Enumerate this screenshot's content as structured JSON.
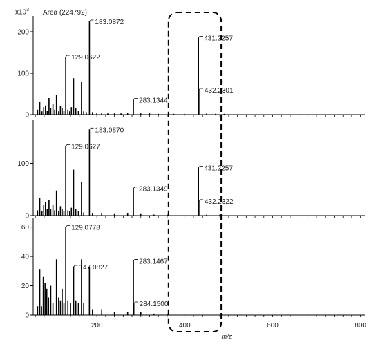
{
  "header": {
    "scale_base": "x10",
    "scale_exp": "3",
    "area_label": "Area (224792)"
  },
  "chart_data": {
    "type": "bar",
    "xlabel": "m/z",
    "xlim": [
      55,
      810
    ],
    "x_ticks": [
      200,
      400,
      600,
      800
    ],
    "highlight_region": {
      "x": [
        363,
        483
      ],
      "style": "dashed-rounded-box"
    },
    "panels": [
      {
        "ylim": [
          0,
          235
        ],
        "y_ticks": [
          0,
          100,
          200
        ],
        "peaks": [
          {
            "x": 65,
            "y": 12
          },
          {
            "x": 70,
            "y": 30
          },
          {
            "x": 75,
            "y": 8
          },
          {
            "x": 79,
            "y": 18
          },
          {
            "x": 83,
            "y": 22
          },
          {
            "x": 87,
            "y": 10
          },
          {
            "x": 91,
            "y": 40
          },
          {
            "x": 95,
            "y": 15
          },
          {
            "x": 100,
            "y": 25
          },
          {
            "x": 104,
            "y": 12
          },
          {
            "x": 108,
            "y": 48
          },
          {
            "x": 113,
            "y": 8
          },
          {
            "x": 117,
            "y": 20
          },
          {
            "x": 121,
            "y": 15
          },
          {
            "x": 125,
            "y": 10
          },
          {
            "x": 129.0622,
            "y": 140,
            "label": "129.0622"
          },
          {
            "x": 134,
            "y": 12
          },
          {
            "x": 138,
            "y": 8
          },
          {
            "x": 142,
            "y": 18
          },
          {
            "x": 147,
            "y": 88
          },
          {
            "x": 152,
            "y": 15
          },
          {
            "x": 158,
            "y": 10
          },
          {
            "x": 165,
            "y": 80
          },
          {
            "x": 170,
            "y": 8
          },
          {
            "x": 176,
            "y": 6
          },
          {
            "x": 183.0872,
            "y": 225,
            "label": "183.0872"
          },
          {
            "x": 190,
            "y": 6
          },
          {
            "x": 200,
            "y": 4
          },
          {
            "x": 211,
            "y": 5
          },
          {
            "x": 225,
            "y": 3
          },
          {
            "x": 240,
            "y": 3
          },
          {
            "x": 255,
            "y": 3
          },
          {
            "x": 270,
            "y": 4
          },
          {
            "x": 283.1344,
            "y": 36,
            "label": "283.1344"
          },
          {
            "x": 300,
            "y": 3
          },
          {
            "x": 320,
            "y": 3
          },
          {
            "x": 340,
            "y": 2
          },
          {
            "x": 375,
            "y": 2
          },
          {
            "x": 400,
            "y": 2
          },
          {
            "x": 431.2257,
            "y": 186,
            "label": "431.2257"
          },
          {
            "x": 432.2301,
            "y": 60,
            "label": "432.2301"
          },
          {
            "x": 450,
            "y": 3
          },
          {
            "x": 470,
            "y": 2
          },
          {
            "x": 490,
            "y": 2
          }
        ]
      },
      {
        "ylim": [
          0,
          180
        ],
        "y_ticks": [
          0,
          100
        ],
        "peaks": [
          {
            "x": 65,
            "y": 10
          },
          {
            "x": 70,
            "y": 34
          },
          {
            "x": 75,
            "y": 8
          },
          {
            "x": 79,
            "y": 20
          },
          {
            "x": 83,
            "y": 26
          },
          {
            "x": 87,
            "y": 12
          },
          {
            "x": 91,
            "y": 30
          },
          {
            "x": 95,
            "y": 12
          },
          {
            "x": 100,
            "y": 20
          },
          {
            "x": 104,
            "y": 10
          },
          {
            "x": 108,
            "y": 48
          },
          {
            "x": 113,
            "y": 8
          },
          {
            "x": 117,
            "y": 18
          },
          {
            "x": 121,
            "y": 12
          },
          {
            "x": 125,
            "y": 8
          },
          {
            "x": 129.0627,
            "y": 133,
            "label": "129.0627"
          },
          {
            "x": 134,
            "y": 10
          },
          {
            "x": 138,
            "y": 8
          },
          {
            "x": 142,
            "y": 15
          },
          {
            "x": 147,
            "y": 88
          },
          {
            "x": 152,
            "y": 12
          },
          {
            "x": 158,
            "y": 8
          },
          {
            "x": 165,
            "y": 65
          },
          {
            "x": 170,
            "y": 6
          },
          {
            "x": 183.087,
            "y": 165,
            "label": "183.0870"
          },
          {
            "x": 190,
            "y": 5
          },
          {
            "x": 211,
            "y": 4
          },
          {
            "x": 240,
            "y": 3
          },
          {
            "x": 270,
            "y": 4
          },
          {
            "x": 283.1349,
            "y": 52,
            "label": "283.1349"
          },
          {
            "x": 300,
            "y": 3
          },
          {
            "x": 330,
            "y": 2
          },
          {
            "x": 360,
            "y": 2
          },
          {
            "x": 431.2257,
            "y": 92,
            "label": "431.2257"
          },
          {
            "x": 432.2322,
            "y": 28,
            "label": "432.2322"
          },
          {
            "x": 450,
            "y": 2
          },
          {
            "x": 480,
            "y": 2
          }
        ]
      },
      {
        "ylim": [
          0,
          65
        ],
        "y_ticks": [
          0,
          20,
          40,
          60
        ],
        "peaks": [
          {
            "x": 65,
            "y": 6
          },
          {
            "x": 70,
            "y": 31
          },
          {
            "x": 74,
            "y": 6
          },
          {
            "x": 78,
            "y": 26
          },
          {
            "x": 82,
            "y": 22
          },
          {
            "x": 86,
            "y": 18
          },
          {
            "x": 90,
            "y": 12
          },
          {
            "x": 95,
            "y": 20
          },
          {
            "x": 100,
            "y": 8
          },
          {
            "x": 108,
            "y": 38
          },
          {
            "x": 113,
            "y": 12
          },
          {
            "x": 117,
            "y": 10
          },
          {
            "x": 121,
            "y": 18
          },
          {
            "x": 125,
            "y": 8
          },
          {
            "x": 129.0778,
            "y": 60,
            "label": "129.0778"
          },
          {
            "x": 134,
            "y": 10
          },
          {
            "x": 140,
            "y": 8
          },
          {
            "x": 147.0827,
            "y": 33,
            "label": "147.0827"
          },
          {
            "x": 152,
            "y": 10
          },
          {
            "x": 158,
            "y": 8
          },
          {
            "x": 165,
            "y": 38
          },
          {
            "x": 170,
            "y": 8
          },
          {
            "x": 183,
            "y": 33
          },
          {
            "x": 190,
            "y": 4
          },
          {
            "x": 211,
            "y": 4
          },
          {
            "x": 240,
            "y": 2
          },
          {
            "x": 270,
            "y": 2
          },
          {
            "x": 283.1467,
            "y": 37,
            "label": "283.1467"
          },
          {
            "x": 284.15,
            "y": 8,
            "label": "284.1500"
          },
          {
            "x": 300,
            "y": 2
          },
          {
            "x": 330,
            "y": 1
          },
          {
            "x": 360,
            "y": 1
          }
        ]
      }
    ]
  }
}
